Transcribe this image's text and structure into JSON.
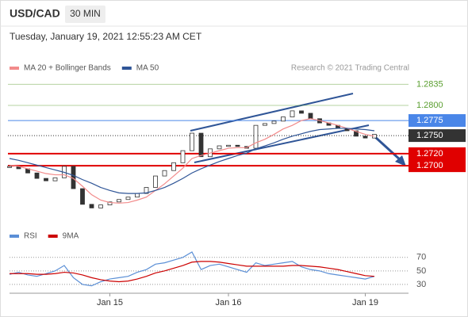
{
  "header": {
    "symbol": "USD/CAD",
    "timeframe": "30 MIN",
    "timestamp": "Tuesday, January 19, 2021 12:55:23 AM CET"
  },
  "chart_data": [
    {
      "type": "candlestick",
      "source": "Research © 2021 Trading Central",
      "ylim": [
        1.262,
        1.285
      ],
      "yticks": [
        1.2835,
        {
          "value": 1.28,
          "label": "1.2800"
        },
        1.2775,
        {
          "value": 1.275,
          "label": "1.2750"
        },
        {
          "value": 1.272,
          "label": "1.2720"
        },
        {
          "value": 1.27,
          "label": "1.2700"
        }
      ],
      "ytick_colors": [
        "#5a9e2f",
        "#5a9e2f",
        "#4a86e8",
        "#333333",
        "#e00000",
        "#e00000"
      ],
      "ytick_styles": [
        "text",
        "text",
        "box",
        "box-dotted",
        "box",
        "box"
      ],
      "series": [
        {
          "color": "#333333",
          "values": [
            1.2699,
            1.2695,
            1.2688,
            1.2679,
            1.2675,
            1.268,
            1.2699,
            1.2662,
            1.2636,
            1.263,
            1.2635,
            1.264,
            1.2644,
            1.2648,
            1.2654,
            1.2664,
            1.2683,
            1.2692,
            1.2705,
            1.2725,
            1.2754,
            1.2715,
            1.2728,
            1.2733,
            1.2734,
            1.2732,
            1.2729,
            1.2767,
            1.277,
            1.2774,
            1.2781,
            1.2791,
            1.2787,
            1.2778,
            1.2771,
            1.2767,
            1.2762,
            1.2758,
            1.2749,
            1.2746,
            1.2752
          ]
        },
        {
          "name": "MA 20 + Bollinger Bands",
          "color": "#f28b8b",
          "values": [
            1.2701,
            1.2699,
            1.2695,
            1.2691,
            1.2687,
            1.2685,
            1.2685,
            1.2679,
            1.2666,
            1.2652,
            1.2643,
            1.2639,
            1.2638,
            1.2639,
            1.2643,
            1.2648,
            1.2659,
            1.267,
            1.2683,
            1.2696,
            1.2712,
            1.2717,
            1.2721,
            1.2725,
            1.2729,
            1.273,
            1.273,
            1.2738,
            1.2744,
            1.2752,
            1.2761,
            1.2767,
            1.2775,
            1.2778,
            1.2775,
            1.2771,
            1.2767,
            1.2762,
            1.2757,
            1.2752,
            1.2749
          ]
        },
        {
          "name": "MA 50",
          "color": "#2f5597",
          "values": [
            1.2712,
            1.2709,
            1.2705,
            1.2701,
            1.2697,
            1.2693,
            1.2689,
            1.2684,
            1.2677,
            1.2671,
            1.2664,
            1.2659,
            1.2655,
            1.2654,
            1.2654,
            1.2655,
            1.2659,
            1.2664,
            1.2671,
            1.2679,
            1.2688,
            1.2695,
            1.2701,
            1.2707,
            1.2712,
            1.2717,
            1.2721,
            1.2728,
            1.2733,
            1.2738,
            1.2744,
            1.2749,
            1.2753,
            1.2757,
            1.276,
            1.2761,
            1.2762,
            1.2762,
            1.2761,
            1.276,
            1.2758
          ]
        }
      ]
    },
    {
      "type": "line",
      "ylim": [
        17,
        85
      ],
      "yticks": [
        30,
        50,
        70
      ],
      "grid": true,
      "categories": [
        null,
        null,
        null,
        null,
        null,
        null,
        null,
        null,
        null,
        null,
        null,
        "Jan 15",
        null,
        null,
        null,
        null,
        null,
        null,
        null,
        null,
        null,
        null,
        null,
        null,
        "Jan 16",
        null,
        null,
        null,
        null,
        null,
        null,
        null,
        null,
        null,
        null,
        null,
        null,
        null,
        null,
        "Jan 19",
        null
      ],
      "series": [
        {
          "name": "RSI",
          "color": "#5b8fd6",
          "values": [
            45,
            48,
            44,
            42,
            46,
            50,
            58,
            40,
            30,
            28,
            34,
            38,
            40,
            42,
            48,
            52,
            60,
            62,
            66,
            70,
            78,
            52,
            58,
            60,
            56,
            52,
            48,
            62,
            58,
            60,
            62,
            64,
            56,
            52,
            50,
            46,
            44,
            42,
            40,
            38,
            42
          ]
        },
        {
          "name": "9MA",
          "color": "#cc0000",
          "values": [
            46,
            46,
            46,
            45,
            45,
            46,
            48,
            47,
            44,
            40,
            37,
            35,
            34,
            35,
            38,
            42,
            47,
            50,
            54,
            58,
            63,
            64,
            64,
            63,
            61,
            59,
            57,
            57,
            57,
            57,
            57,
            58,
            58,
            57,
            56,
            54,
            52,
            49,
            46,
            43,
            42
          ]
        }
      ]
    }
  ]
}
